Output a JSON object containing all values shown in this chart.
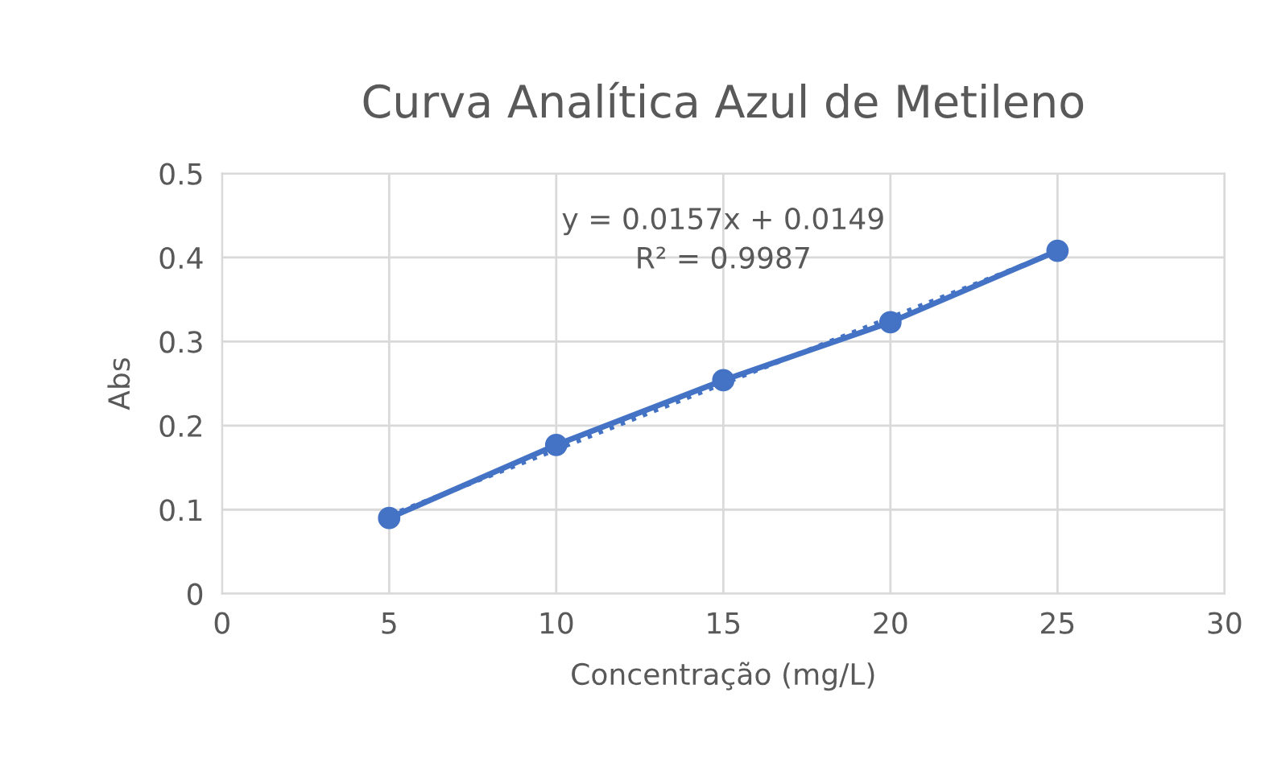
{
  "chart_data": {
    "type": "line",
    "title": "Curva Analítica Azul de Metileno",
    "xlabel": "Concentração (mg/L)",
    "ylabel": "Abs",
    "series": [
      {
        "color": "#4472c4",
        "x": [
          5,
          10,
          15,
          20,
          25
        ],
        "values": [
          0.09,
          0.177,
          0.254,
          0.323,
          0.408
        ],
        "marker": "circle",
        "line_style": "solid"
      },
      {
        "color": "#4472c4",
        "x": [
          5,
          25
        ],
        "values": [
          0.093,
          0.407
        ],
        "marker": "none",
        "line_style": "dotted"
      }
    ],
    "annotations": [
      "y = 0.0157x + 0.0149\nR² = 0.9987"
    ],
    "xlim": [
      0,
      30
    ],
    "xticks": [
      0,
      5,
      10,
      15,
      20,
      25,
      30
    ],
    "ylim": [
      0,
      0.5
    ],
    "yticks": [
      0,
      0.1,
      0.2,
      0.3,
      0.4,
      0.5
    ],
    "grid": true,
    "legend": false
  }
}
